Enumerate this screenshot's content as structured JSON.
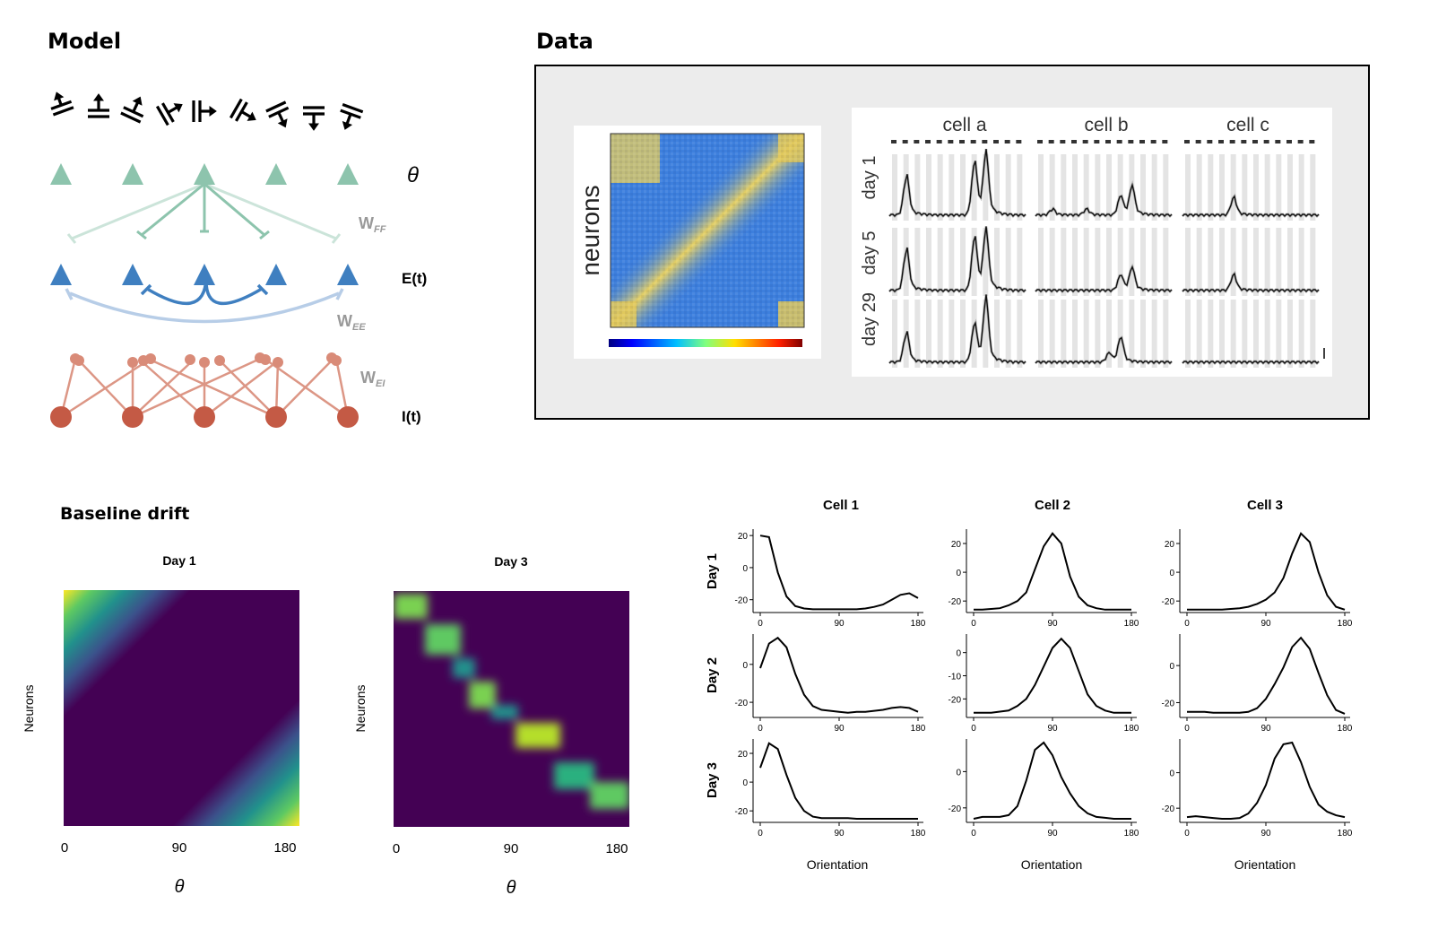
{
  "model": {
    "title": "Model",
    "theta": "θ",
    "e_label": "E(t)",
    "i_label": "I(t)",
    "w_ff": "W",
    "w_ff_sub": "FF",
    "w_ee": "W",
    "w_ee_sub": "EE",
    "w_ei": "W",
    "w_ei_sub": "EI",
    "colors": {
      "ff": "#8dc4ad",
      "exc": "#3f7fc0",
      "inh": "#c45a45"
    }
  },
  "data_panel": {
    "title": "Data",
    "heatmap_ylabel": "neurons",
    "cells": [
      "cell a",
      "cell b",
      "cell c"
    ],
    "days": [
      "day 1",
      "day 5",
      "day 29"
    ]
  },
  "drift": {
    "title": "Baseline drift",
    "panels": [
      {
        "title": "Day 1",
        "ylabel": "Neurons",
        "xlabel": "θ",
        "xticks": [
          "0",
          "90",
          "180"
        ]
      },
      {
        "title": "Day 3",
        "ylabel": "Neurons",
        "xlabel": "θ",
        "xticks": [
          "0",
          "90",
          "180"
        ]
      }
    ]
  },
  "tuning": {
    "xlabel": "Orientation",
    "col_titles": [
      "Cell 1",
      "Cell 2",
      "Cell 3"
    ],
    "row_titles": [
      "Day 1",
      "Day 2",
      "Day 3"
    ]
  },
  "chart_data": [
    {
      "type": "line",
      "title": "Cell 1 / Day 1",
      "x": [
        0,
        10,
        20,
        30,
        40,
        50,
        60,
        70,
        80,
        90,
        100,
        110,
        120,
        130,
        140,
        150,
        160,
        170,
        180
      ],
      "values": [
        20,
        19,
        -3,
        -18,
        -24,
        -25.5,
        -26,
        -26,
        -26,
        -26,
        -26,
        -26,
        -25.5,
        -24.5,
        -23,
        -20,
        -17,
        -16,
        -19
      ],
      "xticks": [
        0,
        90,
        180
      ],
      "yticks": [
        20,
        0,
        -20
      ],
      "ylim": [
        -28,
        24
      ]
    },
    {
      "type": "line",
      "title": "Cell 2 / Day 1",
      "x": [
        0,
        10,
        20,
        30,
        40,
        50,
        60,
        70,
        80,
        90,
        100,
        110,
        120,
        130,
        140,
        150,
        160,
        170,
        180
      ],
      "values": [
        -26,
        -26,
        -25.5,
        -25,
        -23,
        -20,
        -14,
        2,
        18,
        27,
        20,
        -3,
        -17,
        -23,
        -25,
        -26,
        -26,
        -26,
        -26
      ],
      "xticks": [
        0,
        90,
        180
      ],
      "yticks": [
        20,
        0,
        -20
      ],
      "ylim": [
        -28,
        30
      ]
    },
    {
      "type": "line",
      "title": "Cell 3 / Day 1",
      "x": [
        0,
        10,
        20,
        30,
        40,
        50,
        60,
        70,
        80,
        90,
        100,
        110,
        120,
        130,
        140,
        150,
        160,
        170,
        180
      ],
      "values": [
        -26,
        -26,
        -26,
        -26,
        -26,
        -25.5,
        -25,
        -24,
        -22,
        -19,
        -14,
        -4,
        13,
        27,
        21,
        0,
        -16,
        -24,
        -26
      ],
      "xticks": [
        0,
        90,
        180
      ],
      "yticks": [
        20,
        0,
        -20
      ],
      "ylim": [
        -28,
        30
      ]
    },
    {
      "type": "line",
      "title": "Cell 1 / Day 2",
      "x": [
        0,
        10,
        20,
        30,
        40,
        50,
        60,
        70,
        80,
        90,
        100,
        110,
        120,
        130,
        140,
        150,
        160,
        170,
        180
      ],
      "values": [
        -2,
        11,
        14,
        9,
        -5,
        -16,
        -22,
        -24,
        -24.5,
        -25,
        -25.5,
        -25,
        -25,
        -24.5,
        -24,
        -23,
        -22.5,
        -23,
        -25
      ],
      "xticks": [
        0,
        90,
        180
      ],
      "yticks": [
        0,
        -20
      ],
      "ylim": [
        -28,
        16
      ]
    },
    {
      "type": "line",
      "title": "Cell 2 / Day 2",
      "x": [
        0,
        10,
        20,
        30,
        40,
        50,
        60,
        70,
        80,
        90,
        100,
        110,
        120,
        130,
        140,
        150,
        160,
        170,
        180
      ],
      "values": [
        -26,
        -26,
        -26,
        -25.5,
        -25,
        -23,
        -20,
        -14,
        -6,
        2,
        6,
        2,
        -8,
        -18,
        -23,
        -25,
        -26,
        -26,
        -26
      ],
      "xticks": [
        0,
        90,
        180
      ],
      "yticks": [
        0,
        -10,
        -20
      ],
      "ylim": [
        -28,
        8
      ]
    },
    {
      "type": "line",
      "title": "Cell 3 / Day 2",
      "x": [
        0,
        10,
        20,
        30,
        40,
        50,
        60,
        70,
        80,
        90,
        100,
        110,
        120,
        130,
        140,
        150,
        160,
        170,
        180
      ],
      "values": [
        -25,
        -25,
        -25,
        -25.5,
        -25.5,
        -25.5,
        -25.5,
        -25,
        -23,
        -18,
        -10,
        -1,
        10,
        15,
        9,
        -4,
        -16,
        -24,
        -26
      ],
      "xticks": [
        0,
        90,
        180
      ],
      "yticks": [
        0,
        -20
      ],
      "ylim": [
        -28,
        17
      ]
    },
    {
      "type": "line",
      "title": "Cell 1 / Day 3",
      "x": [
        0,
        10,
        20,
        30,
        40,
        50,
        60,
        70,
        80,
        90,
        100,
        110,
        120,
        130,
        140,
        150,
        160,
        170,
        180
      ],
      "values": [
        10,
        27,
        23,
        5,
        -11,
        -20,
        -24,
        -25,
        -25,
        -25,
        -25,
        -25.5,
        -25.5,
        -25.5,
        -25.5,
        -25.5,
        -25.5,
        -25.5,
        -25.5
      ],
      "xticks": [
        0,
        90,
        180
      ],
      "yticks": [
        20,
        0,
        -20
      ],
      "ylim": [
        -28,
        30
      ]
    },
    {
      "type": "line",
      "title": "Cell 2 / Day 3",
      "x": [
        0,
        10,
        20,
        30,
        40,
        50,
        60,
        70,
        80,
        90,
        100,
        110,
        120,
        130,
        140,
        150,
        160,
        170,
        180
      ],
      "values": [
        -26,
        -25,
        -25,
        -25,
        -24,
        -19,
        -5,
        12,
        16,
        9,
        -3,
        -12,
        -19,
        -23,
        -25,
        -25.5,
        -26,
        -26,
        -26
      ],
      "xticks": [
        0,
        90,
        180
      ],
      "yticks": [
        0,
        -20
      ],
      "ylim": [
        -28,
        18
      ]
    },
    {
      "type": "line",
      "title": "Cell 3 / Day 3",
      "x": [
        0,
        10,
        20,
        30,
        40,
        50,
        60,
        70,
        80,
        90,
        100,
        110,
        120,
        130,
        140,
        150,
        160,
        170,
        180
      ],
      "values": [
        -25,
        -24.5,
        -25,
        -25.5,
        -26,
        -26,
        -25.5,
        -23,
        -17,
        -7,
        8,
        16,
        17,
        6,
        -8,
        -18,
        -22,
        -24,
        -25
      ],
      "xticks": [
        0,
        90,
        180
      ],
      "yticks": [
        0,
        -20
      ],
      "ylim": [
        -28,
        19
      ]
    }
  ]
}
